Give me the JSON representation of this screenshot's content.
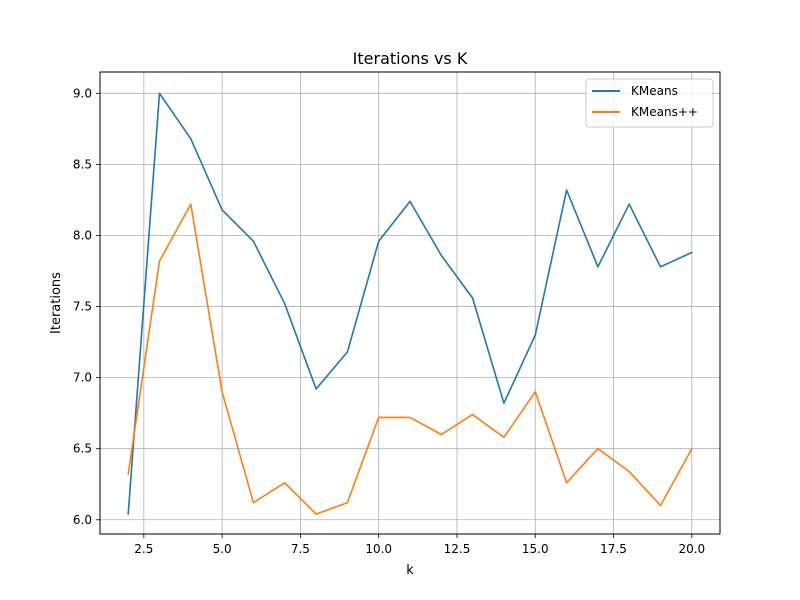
{
  "chart_data": {
    "type": "line",
    "title": "Iterations vs K",
    "xlabel": "k",
    "ylabel": "Iterations",
    "xlim": [
      1.1,
      20.9
    ],
    "ylim": [
      5.9,
      9.15
    ],
    "xticks": [
      2.5,
      5.0,
      7.5,
      10.0,
      12.5,
      15.0,
      17.5,
      20.0
    ],
    "xtick_labels": [
      "2.5",
      "5.0",
      "7.5",
      "10.0",
      "12.5",
      "15.0",
      "17.5",
      "20.0"
    ],
    "yticks": [
      6.0,
      6.5,
      7.0,
      7.5,
      8.0,
      8.5,
      9.0
    ],
    "ytick_labels": [
      "6.0",
      "6.5",
      "7.0",
      "7.5",
      "8.0",
      "8.5",
      "9.0"
    ],
    "grid": true,
    "legend_position": "top-right",
    "x": [
      2,
      3,
      4,
      5,
      6,
      7,
      8,
      9,
      10,
      11,
      12,
      13,
      14,
      15,
      16,
      17,
      18,
      19,
      20
    ],
    "series": [
      {
        "name": "KMeans",
        "color": "#1f77b4",
        "values": [
          6.04,
          9.0,
          8.68,
          8.18,
          7.96,
          7.52,
          6.92,
          7.18,
          7.96,
          8.24,
          7.86,
          7.56,
          6.82,
          7.3,
          8.32,
          7.78,
          8.22,
          7.78,
          7.88
        ]
      },
      {
        "name": "KMeans++",
        "color": "#ff7f0e",
        "values": [
          6.32,
          7.82,
          8.22,
          6.9,
          6.12,
          6.26,
          6.04,
          6.12,
          6.72,
          6.72,
          6.6,
          6.74,
          6.58,
          6.9,
          6.26,
          6.5,
          6.34,
          6.1,
          6.5
        ]
      }
    ]
  }
}
